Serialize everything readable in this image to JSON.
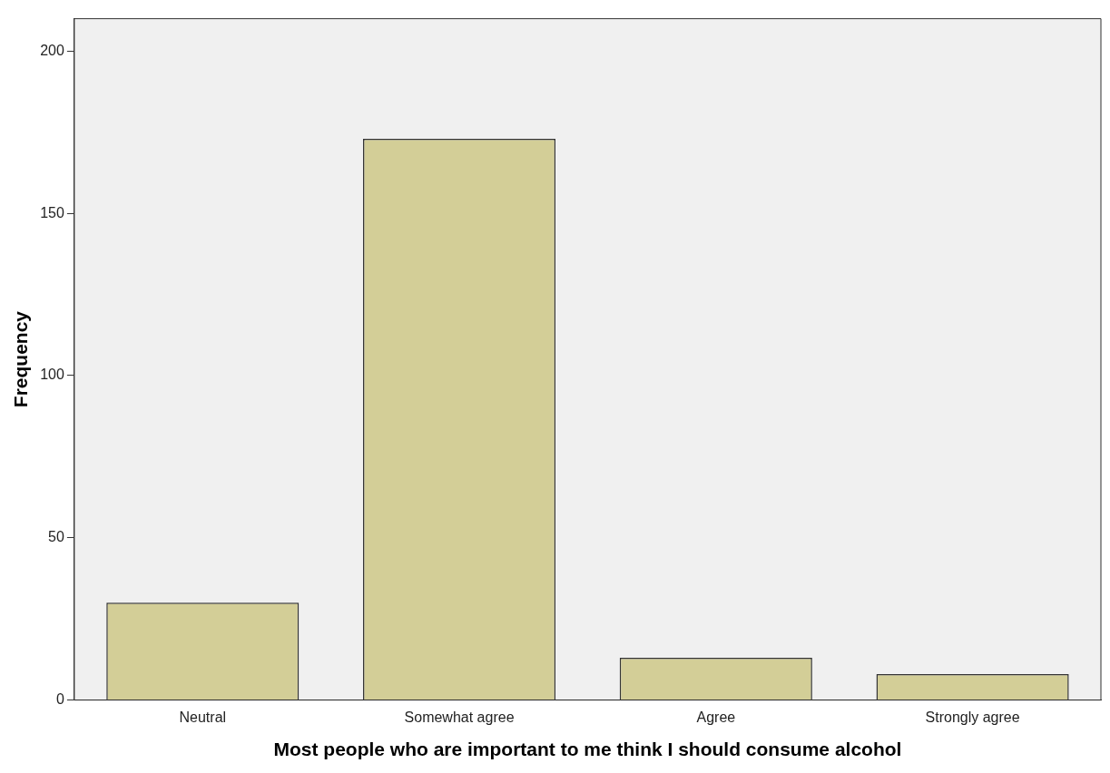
{
  "chart_data": {
    "type": "bar",
    "xlabel": "Most people who are important to me think I should consume alcohol",
    "ylabel": "Frequency",
    "categories": [
      "Neutral",
      "Somewhat agree",
      "Agree",
      "Strongly agree"
    ],
    "values": [
      30,
      173,
      13,
      8
    ],
    "color": "#d3ce97",
    "ylim": [
      0,
      210
    ],
    "yticks": [
      0,
      50,
      100,
      150,
      200
    ],
    "grid": false,
    "legend": false
  }
}
